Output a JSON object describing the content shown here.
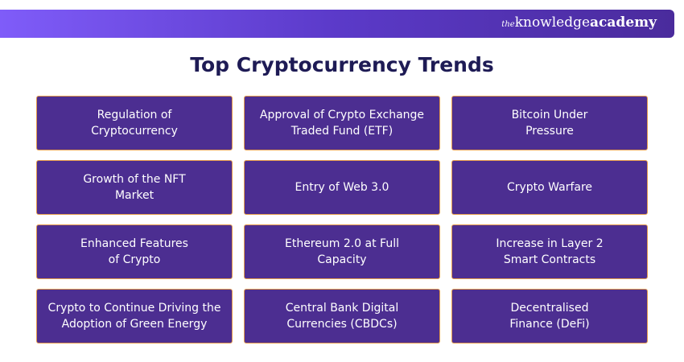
{
  "header": {
    "brand": {
      "small": "the",
      "knowledge": "knowledge",
      "academy": "academy"
    }
  },
  "title": "Top Cryptocurrency Trends",
  "cards": [
    {
      "lines": [
        "Regulation of",
        "Cryptocurrency"
      ]
    },
    {
      "lines": [
        "Approval of Crypto Exchange",
        "Traded Fund (ETF)"
      ]
    },
    {
      "lines": [
        "Bitcoin Under",
        "Pressure"
      ]
    },
    {
      "lines": [
        "Growth of the NFT",
        "Market"
      ]
    },
    {
      "lines": [
        "Entry of Web 3.0"
      ]
    },
    {
      "lines": [
        "Crypto Warfare"
      ]
    },
    {
      "lines": [
        "Enhanced Features",
        "of Crypto"
      ]
    },
    {
      "lines": [
        "Ethereum 2.0 at Full",
        "Capacity"
      ]
    },
    {
      "lines": [
        "Increase in Layer 2",
        "Smart Contracts"
      ]
    },
    {
      "lines": [
        "Crypto to Continue Driving the",
        "Adoption of Green Energy"
      ]
    },
    {
      "lines": [
        "Central Bank Digital",
        "Currencies (CBDCs)"
      ]
    },
    {
      "lines": [
        "Decentralised",
        "Finance (DeFi)"
      ]
    }
  ]
}
